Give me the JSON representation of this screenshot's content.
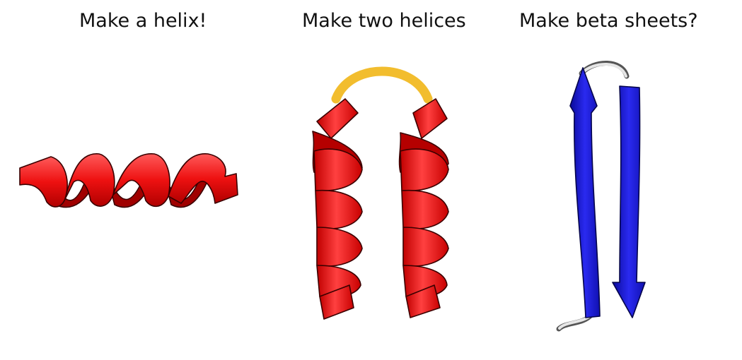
{
  "panels": [
    {
      "caption": "Make a helix!",
      "structure": "single-alpha-helix",
      "color": "#ee1111"
    },
    {
      "caption": "Make two helices",
      "structure": "helix-hairpin",
      "color": "#ee1111",
      "loop_color": "#f2bd2e"
    },
    {
      "caption": "Make beta sheets?",
      "structure": "beta-hairpin",
      "color": "#1a1ae0",
      "loop_color": "#d8d8d8"
    }
  ]
}
